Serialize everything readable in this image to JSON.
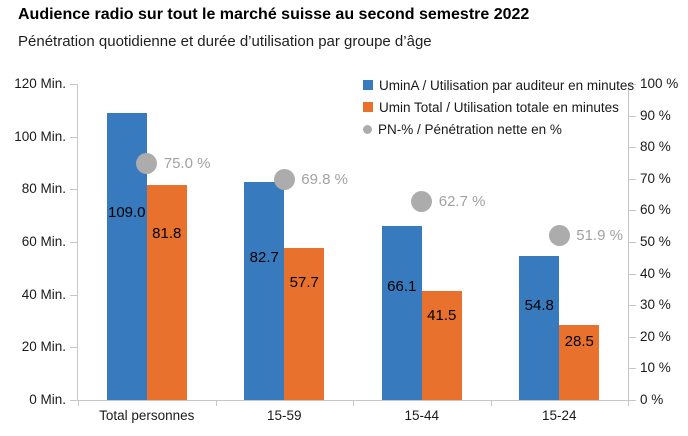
{
  "header": {
    "title": "Audience radio sur tout le marché suisse au second semestre 2022",
    "subtitle": "Pénétration quotidienne et durée d’utilisation par groupe d’âge"
  },
  "chart_data": {
    "type": "bar",
    "title": "Audience radio sur tout le marché suisse au second semestre 2022",
    "subtitle": "Pénétration quotidienne et durée d’utilisation par groupe d’âge",
    "categories": [
      "Total personnes",
      "15-59",
      "15-44",
      "15-24"
    ],
    "series": [
      {
        "name": "UminA / Utilisation par auditeur en minutes",
        "type": "bar",
        "axis": "left",
        "color": "#377ABD",
        "values": [
          109.0,
          82.7,
          66.1,
          54.8
        ],
        "labels": [
          "109.0",
          "82.7",
          "66.1",
          "54.8"
        ]
      },
      {
        "name": "Umin Total / Utilisation totale en minutes",
        "type": "bar",
        "axis": "left",
        "color": "#E8712D",
        "values": [
          81.8,
          57.7,
          41.5,
          28.5
        ],
        "labels": [
          "81.8",
          "57.7",
          "41.5",
          "28.5"
        ]
      },
      {
        "name": "PN-% / Pénétration nette en %",
        "type": "point",
        "axis": "right",
        "color": "#ACACAC",
        "values": [
          75.0,
          69.8,
          62.7,
          51.9
        ],
        "labels": [
          "75.0 %",
          "69.8 %",
          "62.7 %",
          "51.9 %"
        ]
      }
    ],
    "left_axis": {
      "unit": "Min.",
      "min": 0,
      "max": 120,
      "ticks": [
        "120 Min.",
        "100 Min.",
        "80 Min.",
        "60 Min.",
        "40 Min.",
        "20 Min.",
        "0 Min."
      ]
    },
    "right_axis": {
      "unit": "%",
      "min": 0,
      "max": 100,
      "ticks": [
        "100 %",
        "90 %",
        "80 %",
        "70 %",
        "60 %",
        "50 %",
        "40 %",
        "30 %",
        "20 %",
        "10 %",
        "0 %"
      ]
    },
    "legend_position": "top-right",
    "grid": false,
    "colors": {
      "bar_blue": "#377ABD",
      "bar_orange": "#E8712D",
      "point_gray": "#ACACAC",
      "point_label_gray": "#A2A2A2",
      "axis_line": "#C6C6C6"
    }
  }
}
